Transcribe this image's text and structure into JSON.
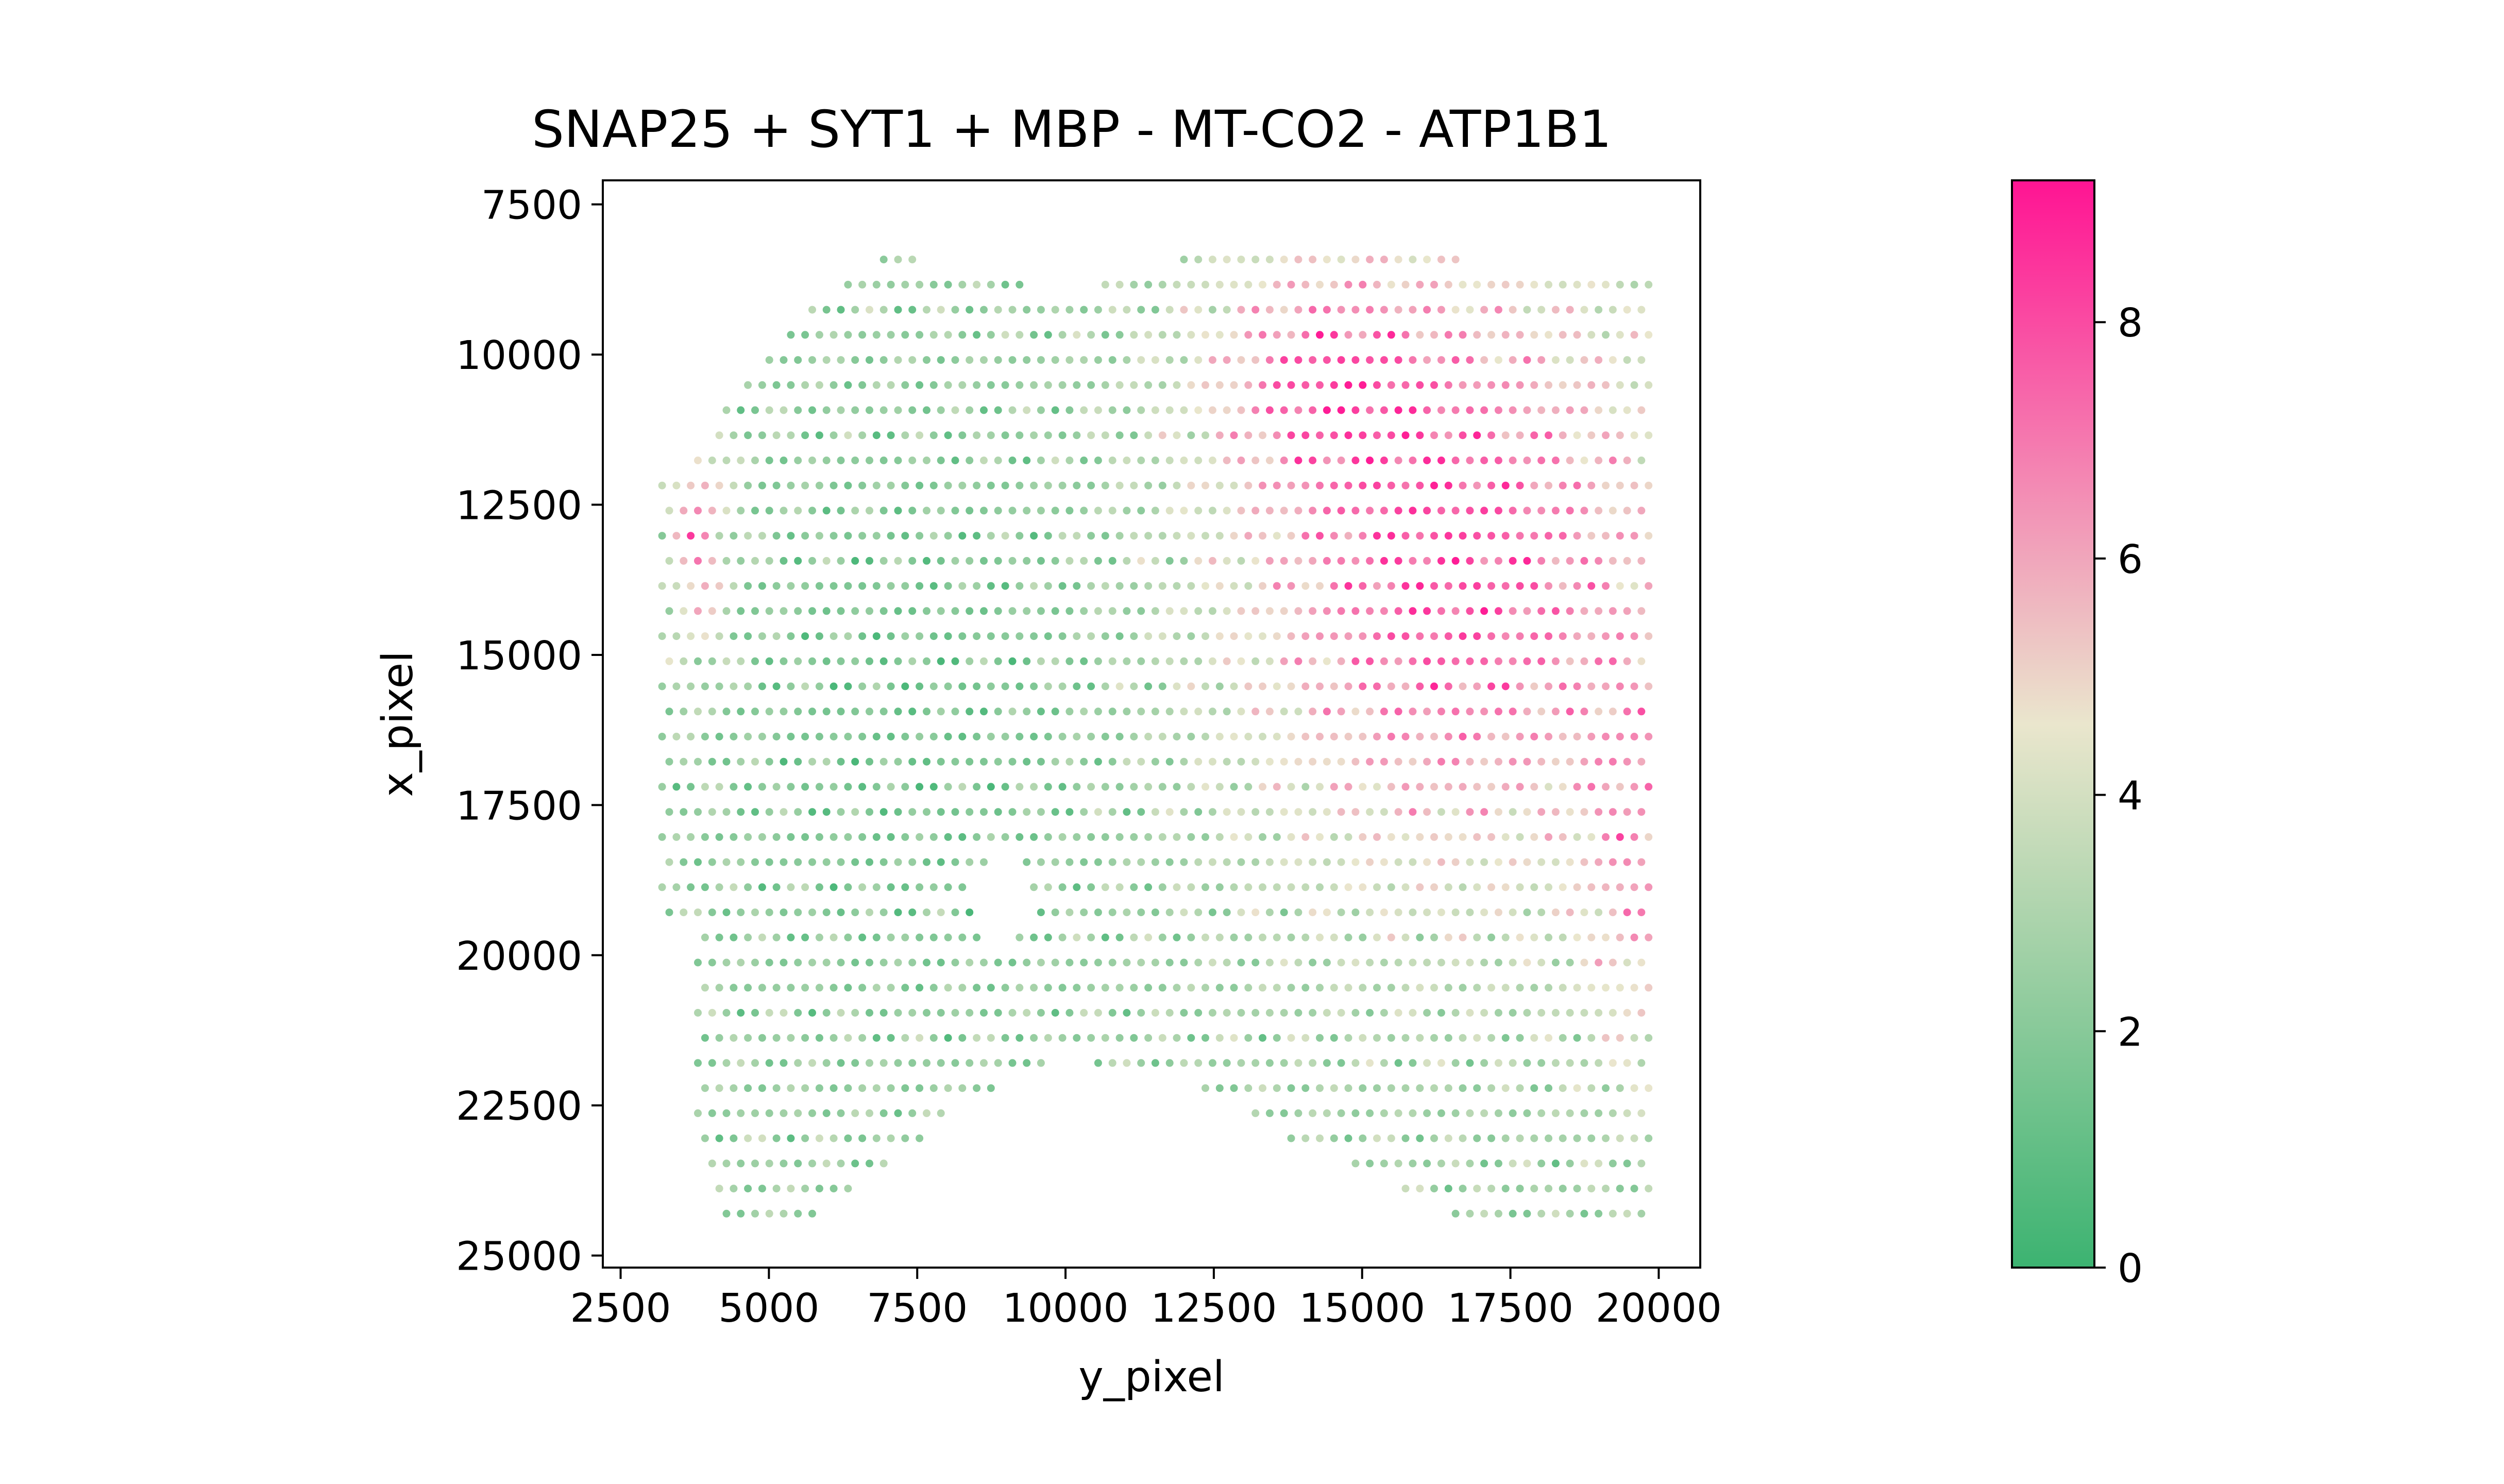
{
  "chart_data": {
    "type": "scatter",
    "title": "SNAP25 + SYT1 + MBP - MT-CO2 - ATP1B1",
    "xlabel": "y_pixel",
    "ylabel": "x_pixel",
    "xlim": [
      2200,
      20700
    ],
    "ylim": [
      25200,
      7100
    ],
    "y_axis_inverted": true,
    "grid": false,
    "x_ticks": [
      2500,
      5000,
      7500,
      10000,
      12500,
      15000,
      17500,
      20000
    ],
    "y_ticks": [
      7500,
      10000,
      12500,
      15000,
      17500,
      20000,
      22500,
      25000
    ],
    "x_tick_labels": [
      "2500",
      "5000",
      "7500",
      "10000",
      "12500",
      "15000",
      "17500",
      "20000"
    ],
    "y_tick_labels": [
      "7500",
      "10000",
      "12500",
      "15000",
      "17500",
      "20000",
      "22500",
      "25000"
    ],
    "colorbar": {
      "min": 0,
      "max": 9.2,
      "ticks": [
        "0",
        "2",
        "4",
        "6",
        "8"
      ],
      "tick_values": [
        0,
        2,
        4,
        6,
        8
      ],
      "colormap": [
        "#3cb371",
        "#eae6cd",
        "#ff1493"
      ],
      "colormap_mid_value": 4.6
    },
    "points_description": "Approximately 3,500 hexagonally-arranged spots spanning y_pixel 3200–19900 and x_pixel 8000–24400. Values are low (green, ~1–4) over the left and lower-center tissue, and high (pink, ~6–9) in the upper-right region (y_pixel 13000–20000, x_pixel 8500–19000) and along a narrow left strip (y_pixel ~3600–4200, x_pixel 11500–15000). A small gap appears near (9000, 19000) and a curved empty notch along the bottom between y_pixel 5000 and 16000.",
    "point_grid": {
      "x_start": 3200,
      "x_end": 19900,
      "x_step": 241,
      "y_start": 8000,
      "y_end": 24500,
      "y_step": 418
    },
    "value_regions": [
      {
        "region": "upper-right",
        "cx": 16500,
        "cy": 13500,
        "peak": 8.6
      },
      {
        "region": "upper-center",
        "cx": 14200,
        "cy": 10300,
        "peak": 8.8
      },
      {
        "region": "left-strip",
        "cx": 3800,
        "cy": 13000,
        "peak": 7.8
      },
      {
        "region": "right-edge",
        "cx": 19600,
        "cy": 18500,
        "peak": 7.5
      }
    ]
  }
}
